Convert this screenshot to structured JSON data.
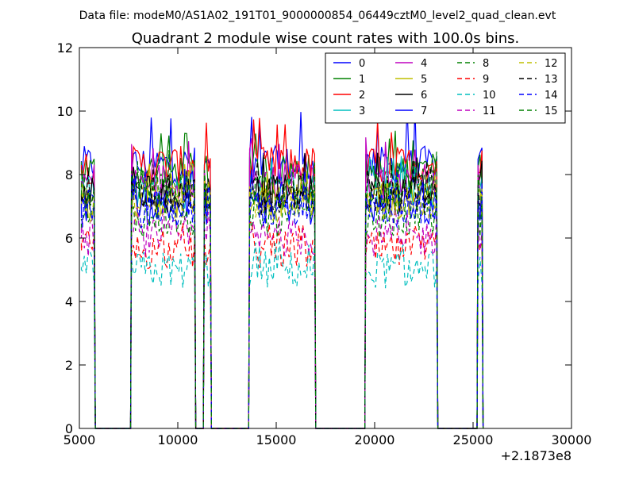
{
  "chart_data": {
    "type": "line",
    "suptitle": "Data file: modeM0/AS1A02_191T01_9000000854_06449cztM0_level2_quad_clean.evt",
    "title": "Quadrant 2 module wise count rates with 100.0s bins.",
    "xlabel": "",
    "ylabel": "",
    "x_offset_label": "+2.1873e8",
    "xlim": [
      5000,
      30000
    ],
    "ylim": [
      0,
      12
    ],
    "xticks": [
      5000,
      10000,
      15000,
      20000,
      25000,
      30000
    ],
    "yticks": [
      0,
      2,
      4,
      6,
      8,
      10,
      12
    ],
    "grid": false,
    "legend": {
      "position": "top-right",
      "columns": 4
    },
    "segments": [
      {
        "x_start": 5150,
        "x_end": 5750
      },
      {
        "x_start": 7650,
        "x_end": 10850
      },
      {
        "x_start": 11350,
        "x_end": 11650
      },
      {
        "x_start": 13650,
        "x_end": 16950
      },
      {
        "x_start": 19550,
        "x_end": 23150
      },
      {
        "x_start": 25250,
        "x_end": 25450
      }
    ],
    "series": [
      {
        "name": "0",
        "color": "#0000ff",
        "dash": "solid",
        "level": 8.3,
        "peak": 10.2
      },
      {
        "name": "1",
        "color": "#008000",
        "dash": "solid",
        "level": 8.1,
        "peak": 9.4
      },
      {
        "name": "2",
        "color": "#ff0000",
        "dash": "solid",
        "level": 8.3,
        "peak": 9.8
      },
      {
        "name": "3",
        "color": "#00bfbf",
        "dash": "solid",
        "level": 7.5,
        "peak": 8.6
      },
      {
        "name": "4",
        "color": "#bf00bf",
        "dash": "solid",
        "level": 7.8,
        "peak": 9.2
      },
      {
        "name": "5",
        "color": "#bfbf00",
        "dash": "solid",
        "level": 7.2,
        "peak": 8.4
      },
      {
        "name": "6",
        "color": "#000000",
        "dash": "solid",
        "level": 7.4,
        "peak": 8.8
      },
      {
        "name": "7",
        "color": "#0000ff",
        "dash": "solid",
        "level": 7.0,
        "peak": 8.2
      },
      {
        "name": "8",
        "color": "#008000",
        "dash": "dashed",
        "level": 6.6,
        "peak": 7.6
      },
      {
        "name": "9",
        "color": "#ff0000",
        "dash": "dashed",
        "level": 5.6,
        "peak": 6.6
      },
      {
        "name": "10",
        "color": "#00bfbf",
        "dash": "dashed",
        "level": 5.0,
        "peak": 5.9
      },
      {
        "name": "11",
        "color": "#bf00bf",
        "dash": "dashed",
        "level": 6.0,
        "peak": 7.0
      },
      {
        "name": "12",
        "color": "#bfbf00",
        "dash": "dashed",
        "level": 7.1,
        "peak": 8.2
      },
      {
        "name": "13",
        "color": "#000000",
        "dash": "dashed",
        "level": 7.3,
        "peak": 8.5
      },
      {
        "name": "14",
        "color": "#0000ff",
        "dash": "dashed",
        "level": 6.9,
        "peak": 8.0
      },
      {
        "name": "15",
        "color": "#008000",
        "dash": "dashed",
        "level": 7.6,
        "peak": 8.8
      }
    ]
  }
}
